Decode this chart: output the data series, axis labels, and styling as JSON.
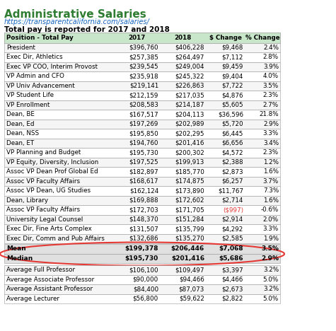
{
  "title": "Administrative Salaries",
  "url": "https://transparentcalifornia.com/salaries/",
  "subtitle": "Total pay is reported for 2017 and 2018",
  "columns": [
    "Position - Total Pay",
    "2017",
    "2018",
    "$ Change",
    "% Change"
  ],
  "rows": [
    [
      "President",
      "$396,760",
      "$406,228",
      "$9,468",
      "2.4%"
    ],
    [
      "Exec Dir, Athletics",
      "$257,385",
      "$264,497",
      "$7,112",
      "2.8%"
    ],
    [
      "Exec VP COO, Interim Provost",
      "$239,545",
      "$249,004",
      "$9,459",
      "3.9%"
    ],
    [
      "VP Admin and CFO",
      "$235,918",
      "$245,322",
      "$9,404",
      "4.0%"
    ],
    [
      "VP Univ Advancement",
      "$219,141",
      "$226,863",
      "$7,722",
      "3.5%"
    ],
    [
      "VP Student Life",
      "$212,159",
      "$217,035",
      "$4,876",
      "2.3%"
    ],
    [
      "VP Enrollment",
      "$208,583",
      "$214,187",
      "$5,605",
      "2.7%"
    ],
    [
      "Dean, BE",
      "$167,517",
      "$204,113",
      "$36,596",
      "21.8%"
    ],
    [
      "Dean, Ed",
      "$197,269",
      "$202,989",
      "$5,720",
      "2.9%"
    ],
    [
      "Dean, NSS",
      "$195,850",
      "$202,295",
      "$6,445",
      "3.3%"
    ],
    [
      "Dean, ET",
      "$194,760",
      "$201,416",
      "$6,656",
      "3.4%"
    ],
    [
      "VP Planning and Budget",
      "$195,730",
      "$200,302",
      "$4,572",
      "2.3%"
    ],
    [
      "VP Equity, Diversity, Inclusion",
      "$197,525",
      "$199,913",
      "$2,388",
      "1.2%"
    ],
    [
      "Assoc VP Dean Prof Global Ed",
      "$182,897",
      "$185,770",
      "$2,873",
      "1.6%"
    ],
    [
      "Assoc VP Faculty Affairs",
      "$168,617",
      "$174,875",
      "$6,257",
      "3.7%"
    ],
    [
      "Assoc VP Dean, UG Studies",
      "$162,124",
      "$173,890",
      "$11,767",
      "7.3%"
    ],
    [
      "Dean, Library",
      "$169,888",
      "$172,602",
      "$2,714",
      "1.6%"
    ],
    [
      "Assoc VP Faculty Affairs",
      "$172,703",
      "$171,705",
      "($997)",
      "-0.6%"
    ],
    [
      "University Legal Counsel",
      "$148,370",
      "$151,284",
      "$2,914",
      "2.0%"
    ],
    [
      "Exec Dir, Fine Arts Complex",
      "$131,507",
      "$135,799",
      "$4,292",
      "3.3%"
    ],
    [
      "Exec Dir, Comm and Pub Affairs",
      "$132,686",
      "$135,270",
      "$2,585",
      "1.9%"
    ]
  ],
  "summary_rows": [
    [
      "Mean",
      "$199,378",
      "$206,446",
      "$7,068",
      "3.5%"
    ],
    [
      "Median",
      "$195,730",
      "$201,416",
      "$5,686",
      "2.9%"
    ]
  ],
  "faculty_rows": [
    [
      "Average Full Professor",
      "$106,100",
      "$109,497",
      "$3,397",
      "3.2%"
    ],
    [
      "Average Associate Professor",
      "$90,000",
      "$94,466",
      "$4,466",
      "5.0%"
    ],
    [
      "Average Assistant Professor",
      "$84,400",
      "$87,073",
      "$2,673",
      "3.2%"
    ],
    [
      "Average Lecturer",
      "$56,800",
      "$59,622",
      "$2,822",
      "5.0%"
    ]
  ],
  "negative_value": "($997)",
  "title_color": "#2e7d32",
  "url_color": "#1565c0",
  "header_bg": "#c8e6c9",
  "row_bg_odd": "#ffffff",
  "row_bg_even": "#f5f5f5",
  "summary_bg": "#e0e0e0",
  "border_color": "#999999",
  "oval_color": "#e53935"
}
